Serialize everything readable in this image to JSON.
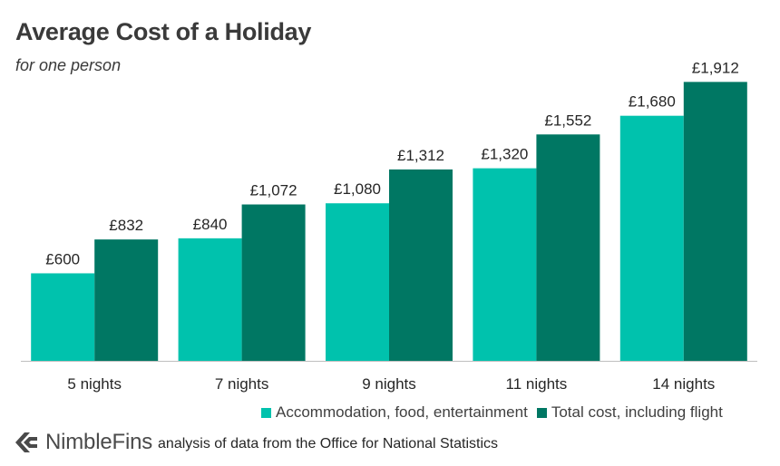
{
  "title": "Average Cost of a Holiday",
  "subtitle": "for one person",
  "colors": {
    "series1": "#00c2ad",
    "series2": "#007763",
    "axis": "#bfbfbf",
    "label": "#262626",
    "logo": "#4a4a4a"
  },
  "footer": {
    "brand": "NimbleFins",
    "brand_icon": "arrow-logo-icon",
    "source": "analysis of data from the Office for National Statistics"
  },
  "chart_data": {
    "type": "bar",
    "title": "Average Cost of a Holiday",
    "subtitle": "for one person",
    "categories": [
      "5 nights",
      "7 nights",
      "9 nights",
      "11 nights",
      "14 nights"
    ],
    "series": [
      {
        "name": "Accommodation, food, entertainment",
        "values": [
          600,
          840,
          1080,
          1320,
          1680
        ],
        "labels": [
          "£600",
          "£840",
          "£1,080",
          "£1,320",
          "£1,680"
        ]
      },
      {
        "name": "Total cost, including flight",
        "values": [
          832,
          1072,
          1312,
          1552,
          1912
        ],
        "labels": [
          "£832",
          "£1,072",
          "£1,312",
          "£1,552",
          "£1,912"
        ]
      }
    ],
    "ylim": [
      0,
      2000
    ],
    "grid": false,
    "legend": "bottom-right",
    "xlabel": "",
    "ylabel": ""
  }
}
